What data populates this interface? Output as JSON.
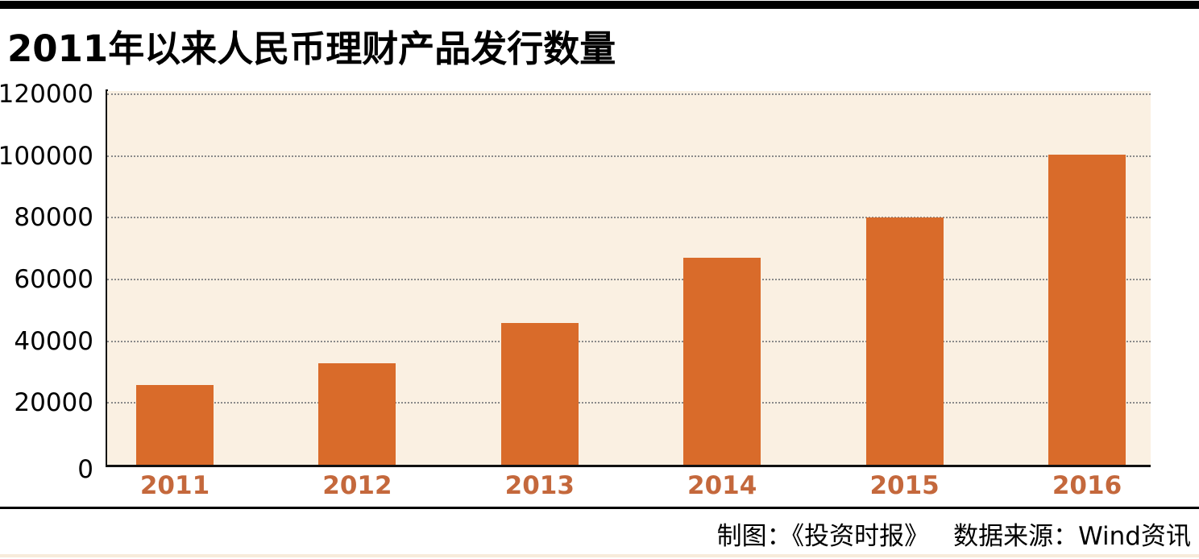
{
  "page": {
    "title": "2011年以来人民币理财产品发行数量"
  },
  "footer": {
    "credit": "制图：《投资时报》",
    "source": "数据来源：Wind资讯"
  },
  "colors": {
    "bar": "#D96B2A",
    "year_label": "#C4683C",
    "plot_bg": "#FAF0E2",
    "gridline": "#8A8A8A",
    "axis": "#111111",
    "top_rule": "#000000",
    "footer_rule": "#000000",
    "bottom_strip": "#F7EBDB"
  },
  "chart_data": {
    "type": "bar",
    "title": "2011年以来人民币理财产品发行数量",
    "categories": [
      "2011",
      "2012",
      "2013",
      "2014",
      "2015",
      "2016"
    ],
    "values": [
      25700,
      33000,
      45800,
      67000,
      80000,
      100500
    ],
    "xlabel": "",
    "ylabel": "",
    "ylim": [
      0,
      120000
    ],
    "yticks": [
      0,
      20000,
      40000,
      60000,
      80000,
      100000,
      120000
    ],
    "grid": "horizontal-dotted",
    "legend": "none",
    "bar_color": "#D96B2A",
    "source_note": "制图：《投资时报》  数据来源：Wind资讯"
  }
}
